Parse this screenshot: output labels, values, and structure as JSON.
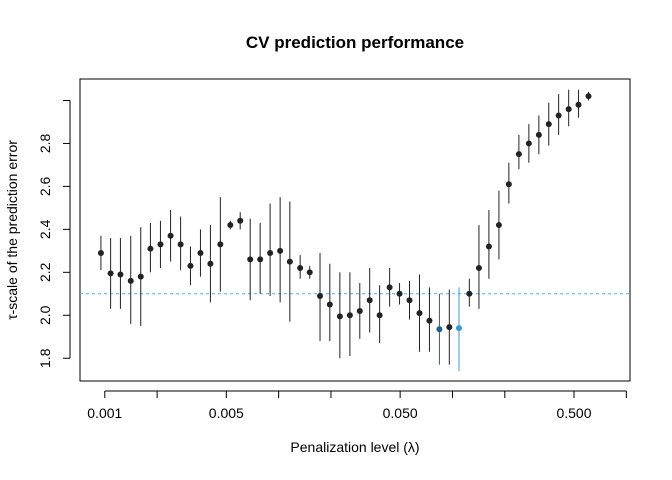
{
  "chart_data": {
    "type": "scatter",
    "title": "CV prediction performance",
    "xlabel": "Penalization level (λ)",
    "ylabel": "τ-scale of the prediction error",
    "x_scale": "log",
    "xlim": [
      0.00072,
      1.05
    ],
    "ylim": [
      1.694,
      3.1
    ],
    "x_ticks": [
      0.001,
      0.005,
      0.05,
      0.5
    ],
    "x_tick_labels": [
      "0.001",
      "0.005",
      "0.050",
      "0.500"
    ],
    "x_minor_ticks": [
      0.002,
      0.01,
      0.02,
      0.1,
      0.2,
      1.0
    ],
    "y_ticks": [
      1.8,
      2.0,
      2.2,
      2.4,
      2.6,
      2.8
    ],
    "y_tick_labels": [
      "1.8",
      "2.0",
      "2.2",
      "2.4",
      "2.6",
      "2.8"
    ],
    "y_minor_ticks": [
      3.0
    ],
    "reference_line": {
      "y": 2.1,
      "style": "dashed",
      "color": "#5aa9e0"
    },
    "grid": false,
    "colors": {
      "point": "#222222",
      "highlight_dark": "#1f5f9e",
      "highlight_light": "#3a9ad9",
      "error_bar": "#222222"
    },
    "points": [
      {
        "lambda": 0.00095,
        "y": 2.29,
        "lo": 2.21,
        "hi": 2.37
      },
      {
        "lambda": 0.00108,
        "y": 2.195,
        "lo": 2.03,
        "hi": 2.36
      },
      {
        "lambda": 0.00123,
        "y": 2.19,
        "lo": 2.03,
        "hi": 2.36
      },
      {
        "lambda": 0.00141,
        "y": 2.16,
        "lo": 1.96,
        "hi": 2.37
      },
      {
        "lambda": 0.00161,
        "y": 2.18,
        "lo": 1.95,
        "hi": 2.41
      },
      {
        "lambda": 0.00183,
        "y": 2.31,
        "lo": 2.2,
        "hi": 2.43
      },
      {
        "lambda": 0.00209,
        "y": 2.33,
        "lo": 2.22,
        "hi": 2.44
      },
      {
        "lambda": 0.00239,
        "y": 2.37,
        "lo": 2.25,
        "hi": 2.49
      },
      {
        "lambda": 0.00273,
        "y": 2.33,
        "lo": 2.21,
        "hi": 2.46
      },
      {
        "lambda": 0.00311,
        "y": 2.23,
        "lo": 2.14,
        "hi": 2.32
      },
      {
        "lambda": 0.00355,
        "y": 2.29,
        "lo": 2.18,
        "hi": 2.4
      },
      {
        "lambda": 0.00405,
        "y": 2.24,
        "lo": 2.06,
        "hi": 2.42
      },
      {
        "lambda": 0.00462,
        "y": 2.33,
        "lo": 2.11,
        "hi": 2.55
      },
      {
        "lambda": 0.00527,
        "y": 2.42,
        "lo": 2.4,
        "hi": 2.44
      },
      {
        "lambda": 0.00601,
        "y": 2.44,
        "lo": 2.4,
        "hi": 2.48
      },
      {
        "lambda": 0.00686,
        "y": 2.26,
        "lo": 2.07,
        "hi": 2.45
      },
      {
        "lambda": 0.00783,
        "y": 2.26,
        "lo": 2.1,
        "hi": 2.43
      },
      {
        "lambda": 0.00893,
        "y": 2.29,
        "lo": 2.09,
        "hi": 2.52
      },
      {
        "lambda": 0.0102,
        "y": 2.3,
        "lo": 2.06,
        "hi": 2.55
      },
      {
        "lambda": 0.0116,
        "y": 2.25,
        "lo": 1.97,
        "hi": 2.53
      },
      {
        "lambda": 0.0133,
        "y": 2.22,
        "lo": 2.17,
        "hi": 2.28
      },
      {
        "lambda": 0.0151,
        "y": 2.2,
        "lo": 2.17,
        "hi": 2.23
      },
      {
        "lambda": 0.0173,
        "y": 2.09,
        "lo": 1.88,
        "hi": 2.29
      },
      {
        "lambda": 0.0197,
        "y": 2.05,
        "lo": 1.88,
        "hi": 2.24
      },
      {
        "lambda": 0.0225,
        "y": 1.995,
        "lo": 1.8,
        "hi": 2.2
      },
      {
        "lambda": 0.0257,
        "y": 2.0,
        "lo": 1.81,
        "hi": 2.2
      },
      {
        "lambda": 0.0293,
        "y": 2.02,
        "lo": 1.89,
        "hi": 2.15
      },
      {
        "lambda": 0.0334,
        "y": 2.07,
        "lo": 1.92,
        "hi": 2.22
      },
      {
        "lambda": 0.0381,
        "y": 2.0,
        "lo": 1.87,
        "hi": 2.14
      },
      {
        "lambda": 0.0435,
        "y": 2.13,
        "lo": 2.04,
        "hi": 2.22
      },
      {
        "lambda": 0.0496,
        "y": 2.1,
        "lo": 2.05,
        "hi": 2.15
      },
      {
        "lambda": 0.0566,
        "y": 2.07,
        "lo": 1.98,
        "hi": 2.16
      },
      {
        "lambda": 0.0646,
        "y": 2.01,
        "lo": 1.83,
        "hi": 2.19
      },
      {
        "lambda": 0.0737,
        "y": 1.975,
        "lo": 1.83,
        "hi": 2.13
      },
      {
        "lambda": 0.0841,
        "y": 1.935,
        "lo": 1.77,
        "hi": 2.1,
        "highlight": "dark"
      },
      {
        "lambda": 0.0959,
        "y": 1.945,
        "lo": 1.77,
        "hi": 2.12
      },
      {
        "lambda": 0.109,
        "y": 1.94,
        "lo": 1.74,
        "hi": 2.13,
        "highlight": "light"
      },
      {
        "lambda": 0.125,
        "y": 2.1,
        "lo": 2.04,
        "hi": 2.17
      },
      {
        "lambda": 0.142,
        "y": 2.22,
        "lo": 2.03,
        "hi": 2.42
      },
      {
        "lambda": 0.162,
        "y": 2.32,
        "lo": 2.17,
        "hi": 2.49
      },
      {
        "lambda": 0.185,
        "y": 2.42,
        "lo": 2.26,
        "hi": 2.58
      },
      {
        "lambda": 0.211,
        "y": 2.61,
        "lo": 2.52,
        "hi": 2.71
      },
      {
        "lambda": 0.241,
        "y": 2.75,
        "lo": 2.68,
        "hi": 2.84
      },
      {
        "lambda": 0.275,
        "y": 2.8,
        "lo": 2.71,
        "hi": 2.89
      },
      {
        "lambda": 0.314,
        "y": 2.84,
        "lo": 2.75,
        "hi": 2.93
      },
      {
        "lambda": 0.358,
        "y": 2.89,
        "lo": 2.79,
        "hi": 2.99
      },
      {
        "lambda": 0.408,
        "y": 2.93,
        "lo": 2.84,
        "hi": 3.03
      },
      {
        "lambda": 0.466,
        "y": 2.96,
        "lo": 2.88,
        "hi": 3.05
      },
      {
        "lambda": 0.531,
        "y": 2.98,
        "lo": 2.92,
        "hi": 3.05
      },
      {
        "lambda": 0.606,
        "y": 3.02,
        "lo": 3.0,
        "hi": 3.04
      }
    ]
  }
}
